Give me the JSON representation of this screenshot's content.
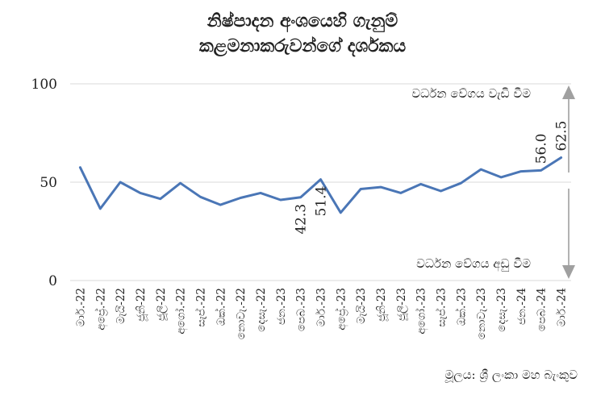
{
  "chart_data": {
    "type": "line",
    "title_lines": [
      "නිෂ්පාදන අංශයෙහි ගැනුම්",
      "කළමනාකරුවන්ගේ දර්ශකය"
    ],
    "categories": [
      "මාර්.-22",
      "අප්‍රේ.-22",
      "මැයි-22",
      "ජූනි-22",
      "ජූලි-22",
      "අගෝ.-22",
      "සැප්.-22",
      "ඔක්.-22",
      "නොවැ.-22",
      "දෙසැ.-22",
      "ජන.-23",
      "පෙබ.-23",
      "මාර්.-23",
      "අප්‍රේ.-23",
      "මැයි-23",
      "ජූනි-23",
      "ජූලි-23",
      "අගෝ.-23",
      "සැප්.-23",
      "ඔක්.-23",
      "නොවැ.-23",
      "දෙසැ.-23",
      "ජන.-24",
      "පෙබ.-24",
      "මාර්.-24"
    ],
    "series": [
      {
        "values": [
          57.5,
          36.5,
          50.0,
          44.5,
          41.5,
          49.5,
          42.5,
          38.5,
          42.0,
          44.5,
          41.0,
          42.3,
          51.4,
          34.5,
          46.5,
          47.5,
          44.5,
          49.0,
          45.5,
          49.5,
          56.5,
          52.5,
          55.5,
          56.0,
          62.5
        ],
        "color": "#4a76b6"
      }
    ],
    "ylim": [
      0,
      100
    ],
    "yticks": [
      0,
      50,
      100
    ],
    "threshold": 50,
    "grid": true,
    "data_labels": [
      {
        "index": 11,
        "text": "42.3"
      },
      {
        "index": 12,
        "text": "51.4"
      },
      {
        "index": 23,
        "text": "56.0"
      },
      {
        "index": 24,
        "text": "62.5"
      }
    ],
    "annotations": {
      "up_text": "වර්ධන වේගය වැඩි වීම",
      "down_text": "වර්ධන වේගය අඩු වීම"
    },
    "source": "මූලය: ශ්‍රී ලංකා මහ බැංකුව",
    "colors": {
      "line": "#4a76b6",
      "grid": "#d9d9d9",
      "arrow": "#a0a0a0"
    }
  }
}
